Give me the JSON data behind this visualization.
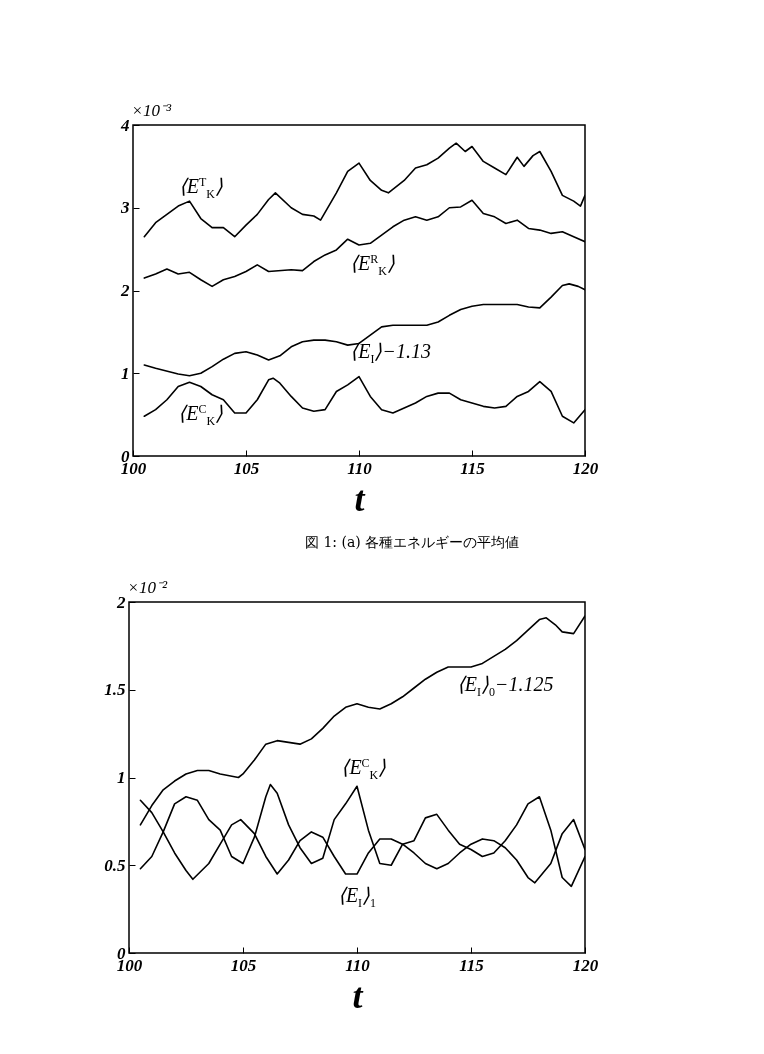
{
  "chart_data": [
    {
      "type": "line",
      "xlabel": "t",
      "ylabel": "×10⁻³",
      "xlim": [
        100,
        120
      ],
      "ylim": [
        0,
        4
      ],
      "xticks": [
        100,
        105,
        110,
        115,
        120
      ],
      "yticks": [
        0,
        1,
        2,
        3,
        4
      ],
      "annotations": [
        "図 1: (a) 各種エネルギーの平均値"
      ],
      "series": [
        {
          "name": "⟨E$^{T}$$_{K}$⟩",
          "color": "#000000",
          "x": [
            100.5,
            101,
            101.5,
            102,
            102.5,
            103,
            103.5,
            104,
            104.5,
            105,
            105.5,
            106,
            106.3,
            107,
            107.5,
            108,
            108.3,
            109,
            109.5,
            110,
            110.5,
            111,
            111.3,
            112,
            112.5,
            113,
            113.5,
            114,
            114.3,
            114.7,
            115,
            115.5,
            116,
            116.5,
            117,
            117.3,
            117.7,
            118,
            118.5,
            119,
            119.5,
            119.8,
            120
          ],
          "values": [
            2.65,
            2.82,
            2.92,
            3.02,
            3.08,
            2.87,
            2.76,
            2.76,
            2.65,
            2.79,
            2.92,
            3.1,
            3.18,
            3.0,
            2.92,
            2.9,
            2.85,
            3.18,
            3.44,
            3.54,
            3.33,
            3.21,
            3.18,
            3.33,
            3.48,
            3.52,
            3.6,
            3.72,
            3.78,
            3.68,
            3.74,
            3.56,
            3.48,
            3.4,
            3.61,
            3.5,
            3.63,
            3.68,
            3.44,
            3.15,
            3.08,
            3.02,
            3.15
          ]
        },
        {
          "name": "⟨E$^{R}$$_{K}$⟩",
          "color": "#000000",
          "x": [
            100.5,
            101,
            101.5,
            102,
            102.5,
            103,
            103.5,
            104,
            104.5,
            105,
            105.5,
            106,
            107,
            107.5,
            108,
            108.5,
            109,
            109.5,
            110,
            110.5,
            111,
            111.5,
            112,
            112.5,
            113,
            113.5,
            114,
            114.5,
            115,
            115.5,
            116,
            116.5,
            117,
            117.5,
            118,
            118.5,
            119,
            119.5,
            120
          ],
          "values": [
            2.15,
            2.2,
            2.26,
            2.2,
            2.22,
            2.13,
            2.05,
            2.13,
            2.17,
            2.23,
            2.31,
            2.23,
            2.25,
            2.24,
            2.35,
            2.43,
            2.49,
            2.62,
            2.55,
            2.57,
            2.67,
            2.77,
            2.85,
            2.89,
            2.85,
            2.89,
            3.0,
            3.01,
            3.09,
            2.93,
            2.89,
            2.81,
            2.85,
            2.75,
            2.73,
            2.69,
            2.71,
            2.65,
            2.59
          ]
        },
        {
          "name": "⟨E$_{I}$⟩−1.13",
          "color": "#000000",
          "x": [
            100.5,
            101,
            102,
            102.5,
            103,
            103.5,
            104,
            104.5,
            105,
            105.5,
            106,
            106.5,
            107,
            107.5,
            108,
            108.5,
            109,
            109.5,
            110,
            110.5,
            111,
            111.5,
            112,
            113,
            113.5,
            114,
            114.5,
            115,
            115.5,
            116,
            117,
            117.5,
            118,
            118.5,
            119,
            119.3,
            119.7,
            120
          ],
          "values": [
            1.1,
            1.06,
            0.99,
            0.97,
            1.0,
            1.08,
            1.17,
            1.24,
            1.26,
            1.22,
            1.16,
            1.21,
            1.32,
            1.38,
            1.4,
            1.4,
            1.38,
            1.34,
            1.36,
            1.46,
            1.56,
            1.58,
            1.58,
            1.58,
            1.62,
            1.7,
            1.77,
            1.81,
            1.83,
            1.83,
            1.83,
            1.8,
            1.79,
            1.92,
            2.06,
            2.08,
            2.05,
            2.01
          ]
        },
        {
          "name": "⟨E$^{C}$$_{K}$⟩",
          "color": "#000000",
          "x": [
            100.5,
            101,
            101.5,
            102,
            102.5,
            103,
            103.5,
            104,
            104.5,
            105,
            105.5,
            106,
            106.2,
            106.5,
            107,
            107.5,
            108,
            108.5,
            109,
            109.5,
            110,
            110.5,
            111,
            111.5,
            112,
            112.5,
            113,
            113.5,
            114,
            114.5,
            115,
            115.5,
            116,
            116.5,
            117,
            117.5,
            118,
            118.5,
            119,
            119.5,
            120
          ],
          "values": [
            0.48,
            0.56,
            0.68,
            0.84,
            0.89,
            0.84,
            0.74,
            0.68,
            0.52,
            0.52,
            0.68,
            0.92,
            0.94,
            0.88,
            0.72,
            0.58,
            0.54,
            0.56,
            0.78,
            0.86,
            0.96,
            0.72,
            0.56,
            0.52,
            0.58,
            0.64,
            0.72,
            0.76,
            0.76,
            0.68,
            0.64,
            0.6,
            0.58,
            0.6,
            0.72,
            0.78,
            0.9,
            0.78,
            0.48,
            0.4,
            0.56
          ]
        }
      ]
    },
    {
      "type": "line",
      "xlabel": "t",
      "ylabel": "×10⁻²",
      "xlim": [
        100,
        120
      ],
      "ylim": [
        0,
        2
      ],
      "xticks": [
        100,
        105,
        110,
        115,
        120
      ],
      "yticks": [
        0,
        0.5,
        1,
        1.5,
        2
      ],
      "series": [
        {
          "name": "⟨E$_{I}$⟩$_{0}$−1.125",
          "color": "#000000",
          "x": [
            100.5,
            101,
            101.5,
            102,
            102.5,
            103,
            103.5,
            104,
            104.8,
            105,
            105.5,
            106,
            106.5,
            107,
            107.5,
            108,
            108.5,
            109,
            109.5,
            110,
            110.5,
            111,
            111.5,
            112,
            112.5,
            113,
            113.5,
            114,
            115,
            115.5,
            116,
            116.5,
            117,
            117.5,
            118,
            118.3,
            118.7,
            119,
            119.5,
            120
          ],
          "values": [
            0.73,
            0.84,
            0.93,
            0.98,
            1.02,
            1.04,
            1.04,
            1.02,
            1.0,
            1.02,
            1.1,
            1.19,
            1.21,
            1.2,
            1.19,
            1.22,
            1.28,
            1.35,
            1.4,
            1.42,
            1.4,
            1.39,
            1.42,
            1.46,
            1.51,
            1.56,
            1.6,
            1.63,
            1.63,
            1.65,
            1.69,
            1.73,
            1.78,
            1.84,
            1.9,
            1.91,
            1.87,
            1.83,
            1.82,
            1.92
          ]
        },
        {
          "name": "⟨E$^{C}$$_{K}$⟩",
          "color": "#000000",
          "x": [
            100.5,
            101,
            101.5,
            102,
            102.5,
            103,
            103.5,
            104,
            104.5,
            105,
            105.5,
            106,
            106.2,
            106.5,
            107,
            107.5,
            108,
            108.5,
            109,
            109.5,
            110,
            110.5,
            111,
            111.5,
            112,
            112.5,
            113,
            113.5,
            114,
            114.5,
            115,
            115.5,
            116,
            116.5,
            117,
            117.5,
            118,
            118.5,
            119,
            119.4,
            120
          ],
          "values": [
            0.48,
            0.55,
            0.69,
            0.85,
            0.89,
            0.87,
            0.76,
            0.7,
            0.55,
            0.51,
            0.66,
            0.89,
            0.96,
            0.91,
            0.73,
            0.6,
            0.51,
            0.54,
            0.76,
            0.85,
            0.95,
            0.7,
            0.51,
            0.5,
            0.62,
            0.64,
            0.77,
            0.79,
            0.7,
            0.62,
            0.59,
            0.55,
            0.57,
            0.64,
            0.73,
            0.85,
            0.89,
            0.7,
            0.43,
            0.38,
            0.55
          ]
        },
        {
          "name": "⟨E$_{I}$⟩$_{1}$",
          "color": "#000000",
          "x": [
            100.5,
            101,
            101.5,
            102,
            102.5,
            102.8,
            103.5,
            104,
            104.5,
            104.9,
            105.5,
            106,
            106.5,
            107,
            107.5,
            108,
            108.5,
            109,
            109.5,
            110,
            110.5,
            111,
            111.5,
            112,
            112.5,
            113,
            113.5,
            114,
            114.5,
            115,
            115.5,
            116,
            116.5,
            117,
            117.5,
            117.8,
            118.5,
            119,
            119.5,
            120
          ],
          "values": [
            0.87,
            0.8,
            0.69,
            0.57,
            0.47,
            0.42,
            0.51,
            0.62,
            0.73,
            0.76,
            0.68,
            0.55,
            0.45,
            0.53,
            0.64,
            0.69,
            0.66,
            0.55,
            0.45,
            0.45,
            0.57,
            0.65,
            0.65,
            0.62,
            0.57,
            0.51,
            0.48,
            0.51,
            0.57,
            0.62,
            0.65,
            0.64,
            0.6,
            0.53,
            0.43,
            0.4,
            0.51,
            0.68,
            0.76,
            0.59
          ]
        }
      ]
    }
  ]
}
